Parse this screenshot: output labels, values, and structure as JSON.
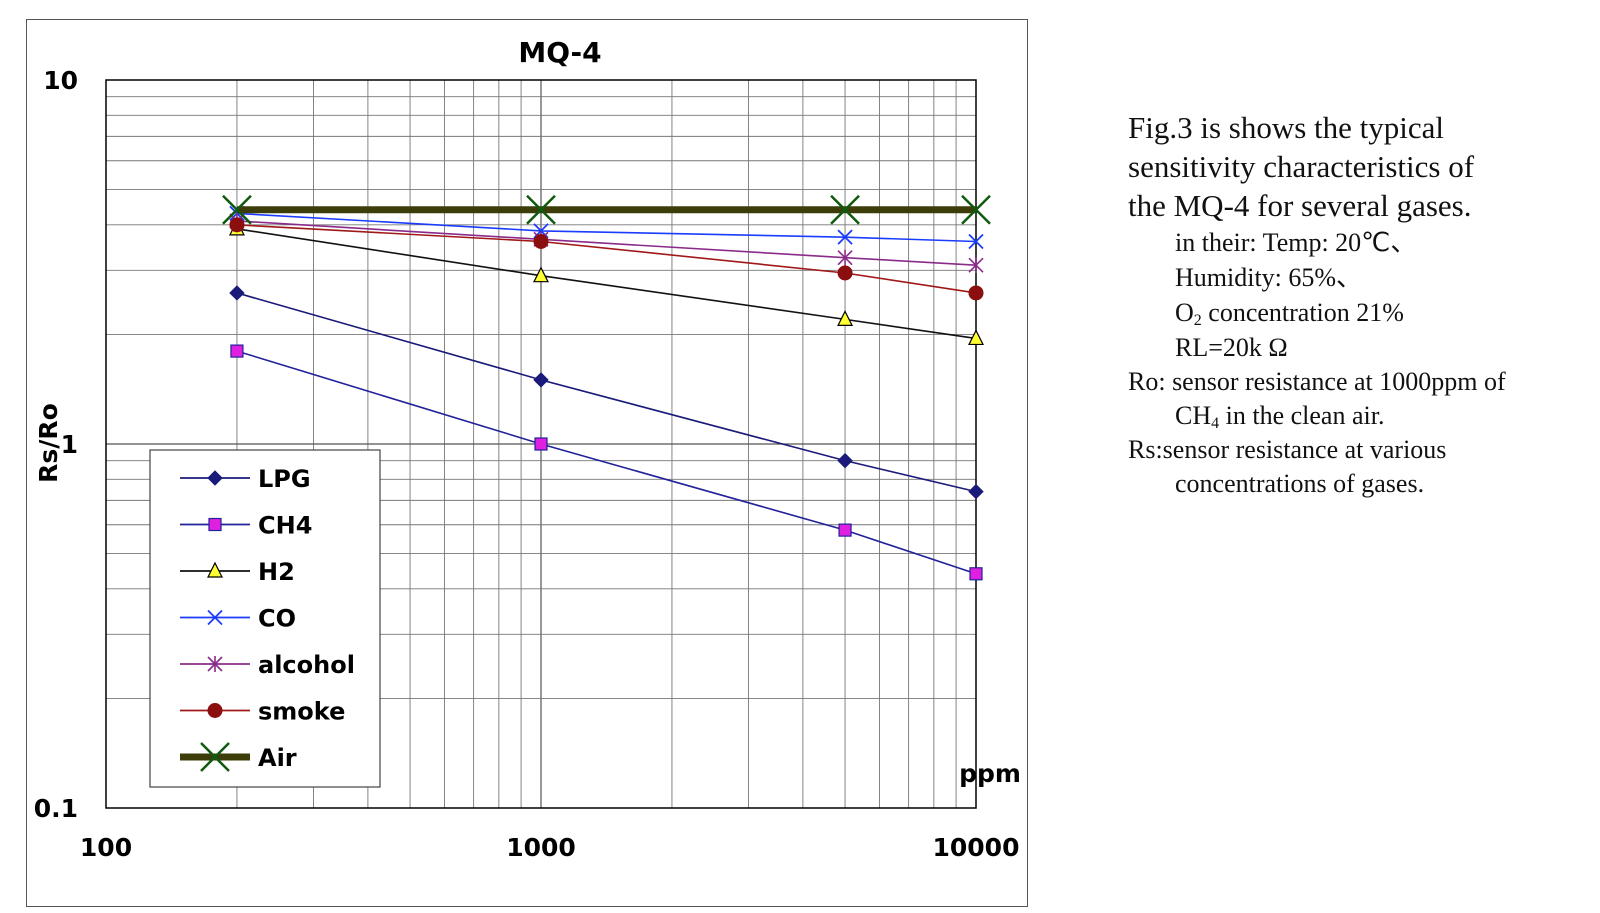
{
  "chart_data": {
    "type": "line",
    "title": "MQ-4",
    "xlabel": "ppm",
    "ylabel": "Rs/Ro",
    "xscale": "log",
    "yscale": "log",
    "xlim": [
      100,
      10000
    ],
    "ylim": [
      0.1,
      10
    ],
    "x_tick_labels": [
      "100",
      "1000",
      "10000"
    ],
    "y_tick_labels": [
      "0.1",
      "1",
      "10"
    ],
    "grid": true,
    "legend_placement": "bottom-left",
    "series": [
      {
        "name": "LPG",
        "color": "#1a1a7a",
        "marker": "diamond",
        "marker_color": "#1a1a7a",
        "x": [
          200,
          1000,
          5000,
          10000
        ],
        "y": [
          2.6,
          1.5,
          0.9,
          0.74
        ]
      },
      {
        "name": "CH4",
        "color": "#22229a",
        "marker": "square",
        "marker_color": "#e020e0",
        "x": [
          200,
          1000,
          5000,
          10000
        ],
        "y": [
          1.8,
          1.0,
          0.58,
          0.44
        ]
      },
      {
        "name": "H2",
        "color": "#111111",
        "marker": "triangle",
        "marker_color": "#ffff33",
        "x": [
          200,
          1000,
          5000,
          10000
        ],
        "y": [
          3.9,
          2.9,
          2.2,
          1.95
        ]
      },
      {
        "name": "CO",
        "color": "#1a3cff",
        "marker": "x",
        "marker_color": "#1a3cff",
        "x": [
          200,
          1000,
          5000,
          10000
        ],
        "y": [
          4.3,
          3.85,
          3.7,
          3.6
        ]
      },
      {
        "name": "alcohol",
        "color": "#8a2b8a",
        "marker": "star",
        "marker_color": "#8a2b8a",
        "x": [
          200,
          1000,
          5000,
          10000
        ],
        "y": [
          4.1,
          3.65,
          3.25,
          3.1
        ]
      },
      {
        "name": "smoke",
        "color": "#a01818",
        "marker": "circle",
        "marker_color": "#8b0f0f",
        "x": [
          200,
          1000,
          5000,
          10000
        ],
        "y": [
          4.0,
          3.6,
          2.95,
          2.6
        ]
      },
      {
        "name": "Air",
        "color": "#3d3d0a",
        "marker": "x",
        "marker_color": "#0f5a0f",
        "thick": true,
        "x": [
          200,
          1000,
          5000,
          10000
        ],
        "y": [
          4.4,
          4.4,
          4.4,
          4.4
        ]
      }
    ]
  },
  "description": {
    "main_lines": [
      "Fig.3 is shows the typical",
      "sensitivity characteristics of",
      "the MQ-4 for several gases."
    ],
    "conditions": {
      "intro": "in their: Temp: 20℃、",
      "humidity": "Humidity: 65%、",
      "o2_prefix": "O",
      "o2_sub": "2",
      "o2_suffix": " concentration 21%",
      "rl": "RL=20k Ω"
    },
    "ro_line1": "Ro: sensor resistance at 1000ppm of",
    "ro_line2_prefix": "CH",
    "ro_line2_sub": "4",
    "ro_line2_suffix": " in the clean air.",
    "rs_line1": "Rs:sensor resistance at various",
    "rs_line2": "concentrations of gases."
  }
}
